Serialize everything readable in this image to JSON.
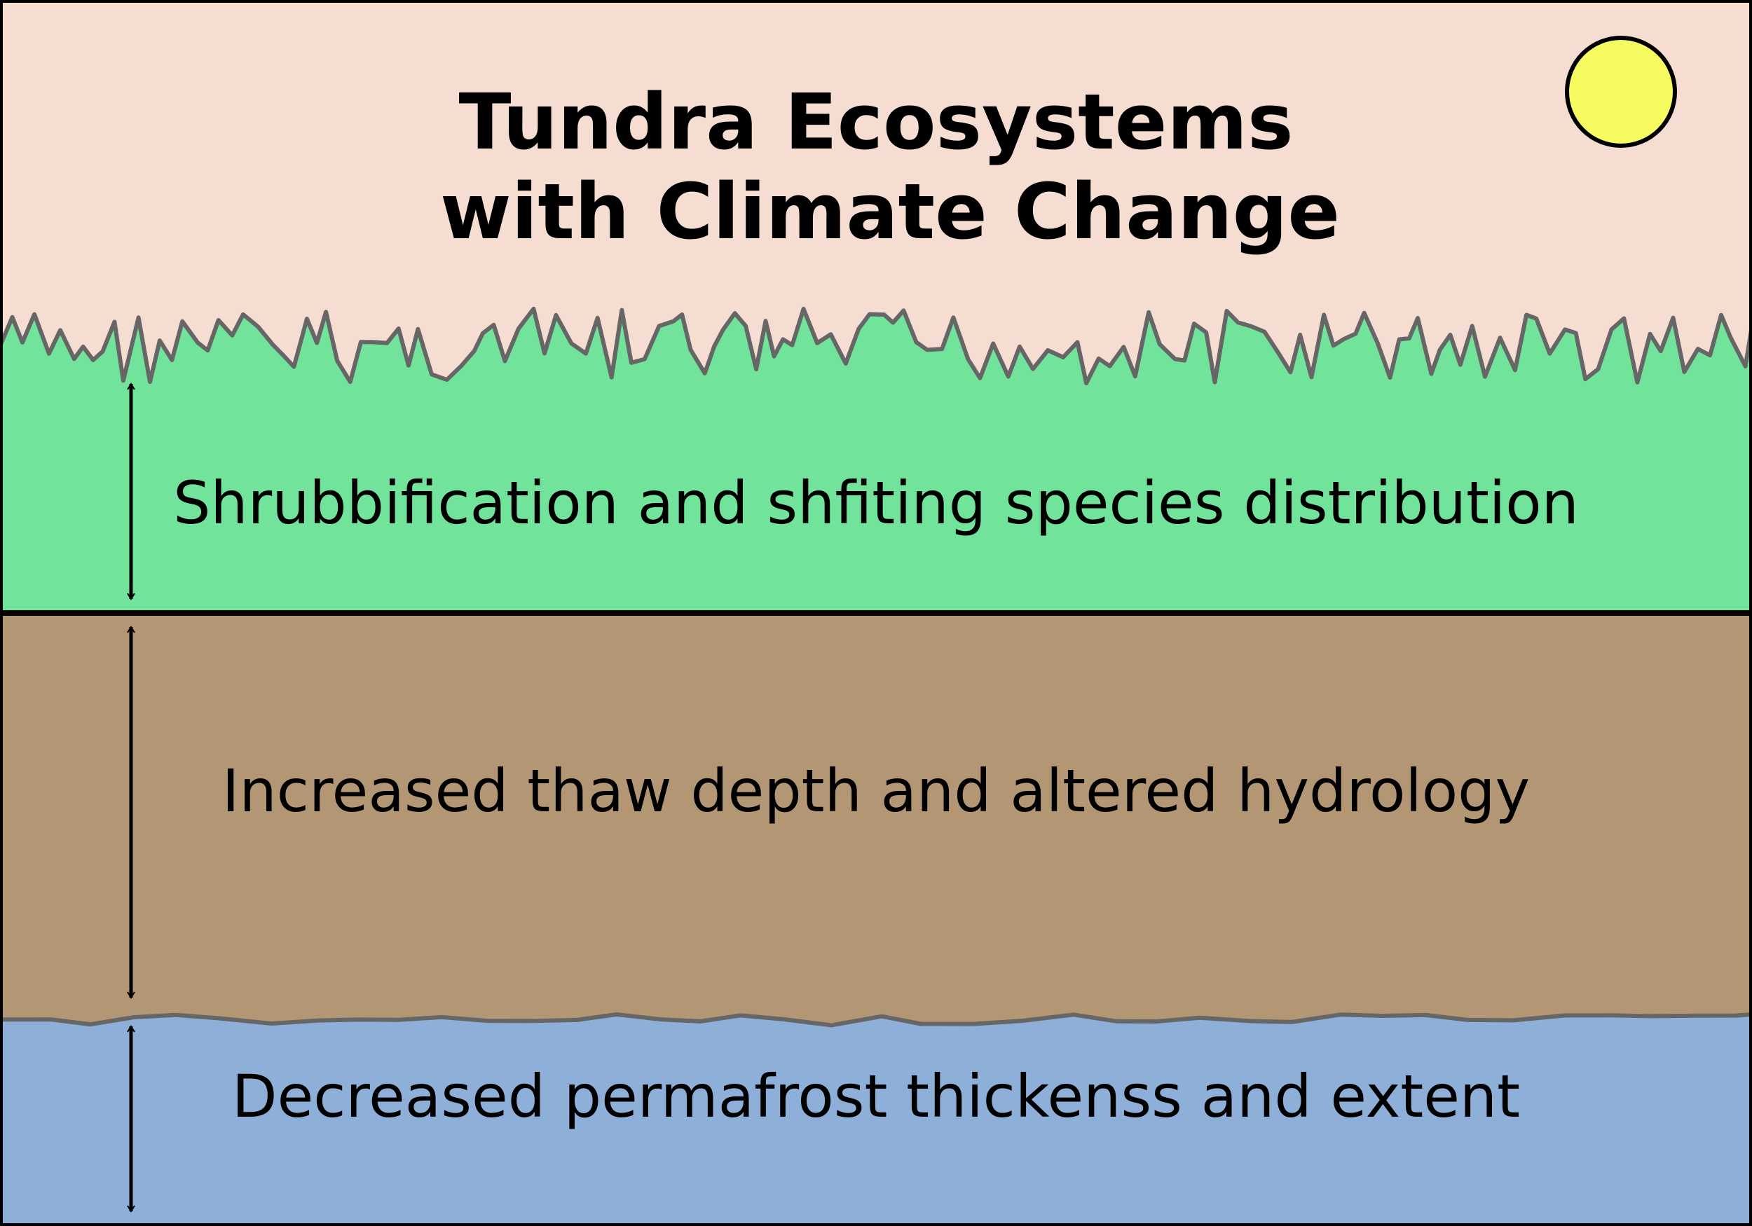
{
  "title": {
    "line1": "Tundra Ecosystems",
    "line2": "with Climate Change"
  },
  "colors": {
    "sky": "#f6ddd1",
    "sun": "#f6fb5f",
    "vegetation": "#71e39a",
    "grass_edge": "#666666",
    "soil": "#b39775",
    "permafrost": "#8eafd7",
    "outline": "#000000"
  },
  "layers": [
    {
      "name": "vegetation",
      "label": "Shrubbification and shfiting species distribution"
    },
    {
      "name": "active-layer",
      "label": "Increased thaw depth and altered hydrology"
    },
    {
      "name": "permafrost",
      "label": "Decreased permafrost thickenss and extent"
    }
  ],
  "icons": {
    "sun": "sun-icon",
    "arrows": "double-headed-arrow-icon"
  }
}
